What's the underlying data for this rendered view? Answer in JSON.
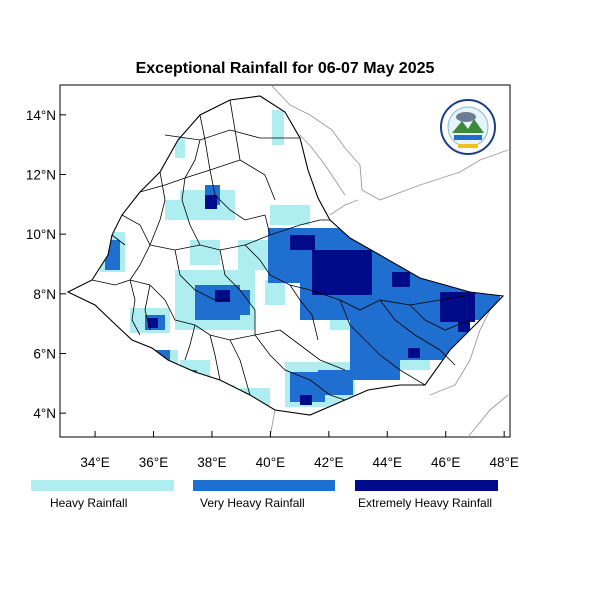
{
  "map": {
    "title": "Exceptional Rainfall for 06-07 May 2025",
    "x_ticks": [
      "34°E",
      "36°E",
      "38°E",
      "40°E",
      "42°E",
      "44°E",
      "46°E",
      "48°E"
    ],
    "y_ticks": [
      "14°N",
      "12°N",
      "10°N",
      "8°N",
      "6°N",
      "4°N"
    ],
    "lon_range": [
      32.8,
      48.2
    ],
    "lat_range": [
      3.2,
      15.0
    ],
    "logo_name": "meteorology-institute-logo"
  },
  "legend": {
    "items": [
      {
        "label": "Heavy Rainfall",
        "color": "#aeeef0"
      },
      {
        "label": "Very Heavy Rainfall",
        "color": "#1f6fd0"
      },
      {
        "label": "Extremely Heavy Rainfall",
        "color": "#000b8a"
      }
    ]
  },
  "colors": {
    "heavy": "#aeeef0",
    "very_heavy": "#1f6fd0",
    "extreme": "#000b8a",
    "border": "#000000",
    "neighbor": "#888888"
  }
}
